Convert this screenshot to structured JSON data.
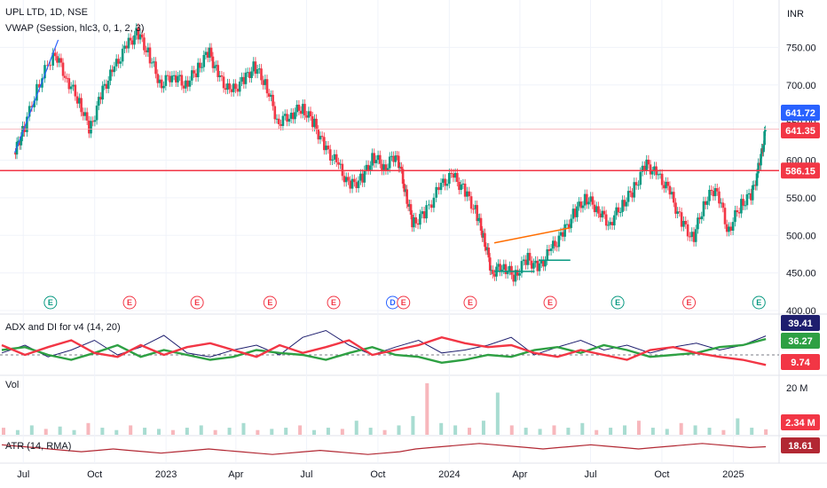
{
  "chart_data": {
    "type": "line",
    "symbol_title": "UPL LTD, 1D, NSE",
    "indicator_vwap": "VWAP (Session, hlc3, 0, 1, 2, 3)",
    "currency": "INR",
    "x_labels": [
      "Jul",
      "Oct",
      "2023",
      "Apr",
      "Jul",
      "Oct",
      "2024",
      "Apr",
      "Jul",
      "Oct",
      "2025"
    ],
    "price": {
      "y_ticks": [
        "750.00",
        "700.00",
        "650.00",
        "600.00",
        "550.00",
        "500.00",
        "450.00",
        "400.00"
      ],
      "ylim": [
        400,
        780
      ],
      "close_path": [
        {
          "d": "2022-06-20",
          "v": 610
        },
        {
          "d": "2022-07-01",
          "v": 640
        },
        {
          "d": "2022-07-20",
          "v": 700
        },
        {
          "d": "2022-08-10",
          "v": 745
        },
        {
          "d": "2022-08-25",
          "v": 710
        },
        {
          "d": "2022-09-10",
          "v": 680
        },
        {
          "d": "2022-09-25",
          "v": 640
        },
        {
          "d": "2022-10-10",
          "v": 690
        },
        {
          "d": "2022-10-25",
          "v": 720
        },
        {
          "d": "2022-11-10",
          "v": 750
        },
        {
          "d": "2022-11-25",
          "v": 770
        },
        {
          "d": "2022-12-10",
          "v": 740
        },
        {
          "d": "2022-12-25",
          "v": 700
        },
        {
          "d": "2023-01-10",
          "v": 715
        },
        {
          "d": "2023-01-25",
          "v": 700
        },
        {
          "d": "2023-02-10",
          "v": 720
        },
        {
          "d": "2023-02-25",
          "v": 745
        },
        {
          "d": "2023-03-10",
          "v": 710
        },
        {
          "d": "2023-03-25",
          "v": 690
        },
        {
          "d": "2023-04-10",
          "v": 705
        },
        {
          "d": "2023-04-25",
          "v": 725
        },
        {
          "d": "2023-05-10",
          "v": 700
        },
        {
          "d": "2023-05-25",
          "v": 650
        },
        {
          "d": "2023-06-10",
          "v": 660
        },
        {
          "d": "2023-06-25",
          "v": 670
        },
        {
          "d": "2023-07-10",
          "v": 650
        },
        {
          "d": "2023-07-25",
          "v": 615
        },
        {
          "d": "2023-08-10",
          "v": 595
        },
        {
          "d": "2023-08-25",
          "v": 565
        },
        {
          "d": "2023-09-10",
          "v": 575
        },
        {
          "d": "2023-09-25",
          "v": 605
        },
        {
          "d": "2023-10-10",
          "v": 590
        },
        {
          "d": "2023-10-25",
          "v": 610
        },
        {
          "d": "2023-11-05",
          "v": 560
        },
        {
          "d": "2023-11-15",
          "v": 515
        },
        {
          "d": "2023-12-01",
          "v": 530
        },
        {
          "d": "2023-12-20",
          "v": 565
        },
        {
          "d": "2024-01-05",
          "v": 580
        },
        {
          "d": "2024-01-20",
          "v": 560
        },
        {
          "d": "2024-02-05",
          "v": 530
        },
        {
          "d": "2024-02-15",
          "v": 495
        },
        {
          "d": "2024-02-25",
          "v": 450
        },
        {
          "d": "2024-03-10",
          "v": 460
        },
        {
          "d": "2024-03-25",
          "v": 445
        },
        {
          "d": "2024-04-10",
          "v": 470
        },
        {
          "d": "2024-04-25",
          "v": 455
        },
        {
          "d": "2024-05-10",
          "v": 480
        },
        {
          "d": "2024-05-25",
          "v": 500
        },
        {
          "d": "2024-06-10",
          "v": 530
        },
        {
          "d": "2024-06-25",
          "v": 550
        },
        {
          "d": "2024-07-10",
          "v": 535
        },
        {
          "d": "2024-07-25",
          "v": 515
        },
        {
          "d": "2024-08-10",
          "v": 540
        },
        {
          "d": "2024-08-25",
          "v": 560
        },
        {
          "d": "2024-09-10",
          "v": 595
        },
        {
          "d": "2024-09-25",
          "v": 580
        },
        {
          "d": "2024-10-10",
          "v": 560
        },
        {
          "d": "2024-10-25",
          "v": 520
        },
        {
          "d": "2024-11-10",
          "v": 495
        },
        {
          "d": "2024-11-25",
          "v": 545
        },
        {
          "d": "2024-12-10",
          "v": 565
        },
        {
          "d": "2024-12-25",
          "v": 505
        },
        {
          "d": "2025-01-10",
          "v": 540
        },
        {
          "d": "2025-01-25",
          "v": 555
        },
        {
          "d": "2025-02-05",
          "v": 600
        },
        {
          "d": "2025-02-12",
          "v": 641.35
        }
      ],
      "horizontal_line": 586.15,
      "badges": [
        {
          "text": "641.72",
          "value": 641.72,
          "color": "#2962ff"
        },
        {
          "text": "641.35",
          "value": 641.35,
          "color": "#f23645"
        },
        {
          "text": "586.15",
          "value": 586.15,
          "color": "#f23645"
        }
      ],
      "events": [
        {
          "d": "2022-08-05",
          "l": "E",
          "c": "#089981"
        },
        {
          "d": "2022-11-15",
          "l": "E",
          "c": "#f23645"
        },
        {
          "d": "2023-02-10",
          "l": "E",
          "c": "#f23645"
        },
        {
          "d": "2023-05-15",
          "l": "E",
          "c": "#f23645"
        },
        {
          "d": "2023-08-05",
          "l": "E",
          "c": "#f23645"
        },
        {
          "d": "2023-10-20",
          "l": "D",
          "c": "#2962ff"
        },
        {
          "d": "2023-11-03",
          "l": "E",
          "c": "#f23645"
        },
        {
          "d": "2024-01-28",
          "l": "E",
          "c": "#f23645"
        },
        {
          "d": "2024-05-10",
          "l": "E",
          "c": "#f23645"
        },
        {
          "d": "2024-08-05",
          "l": "E",
          "c": "#089981"
        },
        {
          "d": "2024-11-05",
          "l": "E",
          "c": "#f23645"
        },
        {
          "d": "2025-02-03",
          "l": "E",
          "c": "#089981"
        }
      ]
    },
    "adx": {
      "label": "ADX and DI for v4 (14, 20)",
      "ylim": [
        0,
        60
      ],
      "series": [
        {
          "name": "ADX",
          "color": "#1e1e6e",
          "value_text": "39.41",
          "values": [
            22,
            30,
            18,
            25,
            35,
            20,
            28,
            40,
            22,
            18,
            25,
            30,
            20,
            38,
            45,
            30,
            20,
            28,
            35,
            22,
            25,
            30,
            38,
            20,
            28,
            35,
            25,
            30,
            22,
            28,
            32,
            25,
            30,
            39.41
          ]
        },
        {
          "name": "+DI",
          "color": "#2ea043",
          "value_text": "36.27",
          "values": [
            25,
            28,
            20,
            15,
            22,
            30,
            18,
            25,
            20,
            15,
            18,
            25,
            22,
            20,
            15,
            22,
            28,
            20,
            18,
            12,
            15,
            20,
            18,
            25,
            28,
            22,
            30,
            25,
            18,
            20,
            22,
            28,
            30,
            36.27
          ]
        },
        {
          "name": "-DI",
          "color": "#f23645",
          "value_text": "9.74",
          "values": [
            30,
            20,
            28,
            35,
            22,
            18,
            30,
            20,
            28,
            32,
            25,
            18,
            30,
            22,
            28,
            35,
            20,
            25,
            30,
            38,
            32,
            28,
            30,
            22,
            18,
            25,
            20,
            15,
            25,
            28,
            22,
            18,
            15,
            9.74
          ]
        }
      ]
    },
    "volume": {
      "label": "Vol",
      "y_ticks": [
        "20 M"
      ],
      "ylim": [
        0,
        25
      ],
      "value_text": "2.34 M",
      "values": [
        3,
        2,
        4,
        2.5,
        3.5,
        2,
        5,
        3,
        2,
        4,
        3,
        2.5,
        2,
        3,
        4,
        2,
        3,
        5,
        2,
        2.5,
        3,
        4,
        2,
        3,
        2.5,
        6,
        3,
        2,
        4,
        8,
        22,
        5,
        4,
        3,
        6,
        18,
        4,
        3,
        2.5,
        4,
        3,
        5,
        2,
        3,
        4,
        6,
        3,
        2.5,
        5,
        4,
        3,
        2,
        7,
        3,
        2.34
      ]
    },
    "atr": {
      "label": "ATR (14, RMA)",
      "ylim": [
        8,
        26
      ],
      "value_text": "18.61",
      "values": [
        20,
        19,
        18,
        17,
        16,
        15,
        16,
        17,
        16,
        15,
        14,
        15,
        16,
        17,
        16,
        15,
        14,
        13,
        14,
        15,
        16,
        15,
        14,
        13,
        14,
        15,
        17,
        18,
        19,
        20,
        21,
        20,
        19,
        18,
        17,
        18,
        19,
        20,
        19,
        18,
        17,
        18,
        19,
        20,
        21,
        20,
        19,
        18,
        18.61
      ]
    }
  }
}
